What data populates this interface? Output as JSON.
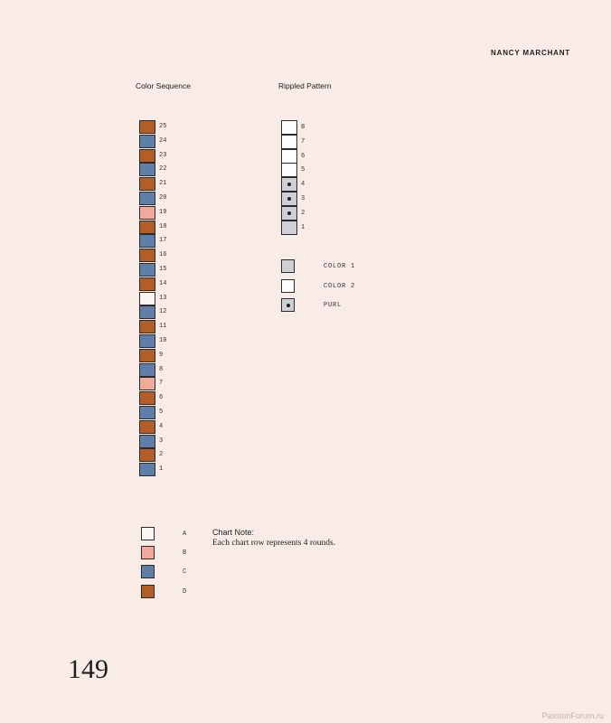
{
  "header": {
    "author": "NANCY MARCHANT"
  },
  "colors": {
    "A": "#fbf5f1",
    "B": "#f3a89c",
    "C": "#5f7fa8",
    "D": "#b35e27",
    "chart_color1": "#cdd0d4",
    "chart_color2": "#ffffff",
    "dot": "#1d1d1d"
  },
  "color_sequence": {
    "title": "Color Sequence",
    "rows": [
      {
        "label": "25",
        "color": "D"
      },
      {
        "label": "24",
        "color": "C"
      },
      {
        "label": "23",
        "color": "D"
      },
      {
        "label": "22",
        "color": "C"
      },
      {
        "label": "21",
        "color": "D"
      },
      {
        "label": "20",
        "color": "C"
      },
      {
        "label": "19",
        "color": "B"
      },
      {
        "label": "18",
        "color": "D"
      },
      {
        "label": "17",
        "color": "C"
      },
      {
        "label": "16",
        "color": "D"
      },
      {
        "label": "15",
        "color": "C"
      },
      {
        "label": "14",
        "color": "D"
      },
      {
        "label": "13",
        "color": "A"
      },
      {
        "label": "12",
        "color": "C"
      },
      {
        "label": "11",
        "color": "D"
      },
      {
        "label": "10",
        "color": "C"
      },
      {
        "label": "9",
        "color": "D"
      },
      {
        "label": "8",
        "color": "C"
      },
      {
        "label": "7",
        "color": "B"
      },
      {
        "label": "6",
        "color": "D"
      },
      {
        "label": "5",
        "color": "C"
      },
      {
        "label": "4",
        "color": "D"
      },
      {
        "label": "3",
        "color": "C"
      },
      {
        "label": "2",
        "color": "D"
      },
      {
        "label": "1",
        "color": "C"
      }
    ]
  },
  "rippled_pattern": {
    "title": "Rippled Pattern",
    "rows": [
      {
        "label": "8",
        "cell": "color2",
        "purl": false
      },
      {
        "label": "7",
        "cell": "color2",
        "purl": false
      },
      {
        "label": "6",
        "cell": "color2",
        "purl": false
      },
      {
        "label": "5",
        "cell": "color2",
        "purl": false
      },
      {
        "label": "4",
        "cell": "color1",
        "purl": true
      },
      {
        "label": "3",
        "cell": "color1",
        "purl": true
      },
      {
        "label": "2",
        "cell": "color1",
        "purl": true
      },
      {
        "label": "1",
        "cell": "color1",
        "purl": false
      }
    ]
  },
  "pattern_legend": [
    {
      "label": "COLOR 1",
      "cell": "color1",
      "purl": false
    },
    {
      "label": "COLOR 2",
      "cell": "color2",
      "purl": false
    },
    {
      "label": "PURL",
      "cell": "color1",
      "purl": true
    }
  ],
  "color_legend": [
    {
      "label": "A",
      "color": "A"
    },
    {
      "label": "B",
      "color": "B"
    },
    {
      "label": "C",
      "color": "C"
    },
    {
      "label": "D",
      "color": "D"
    }
  ],
  "chart_note": {
    "title": "Chart Note:",
    "body": "Each chart row represents 4 rounds."
  },
  "page_number": "149",
  "watermark": "PassionForum.ru"
}
